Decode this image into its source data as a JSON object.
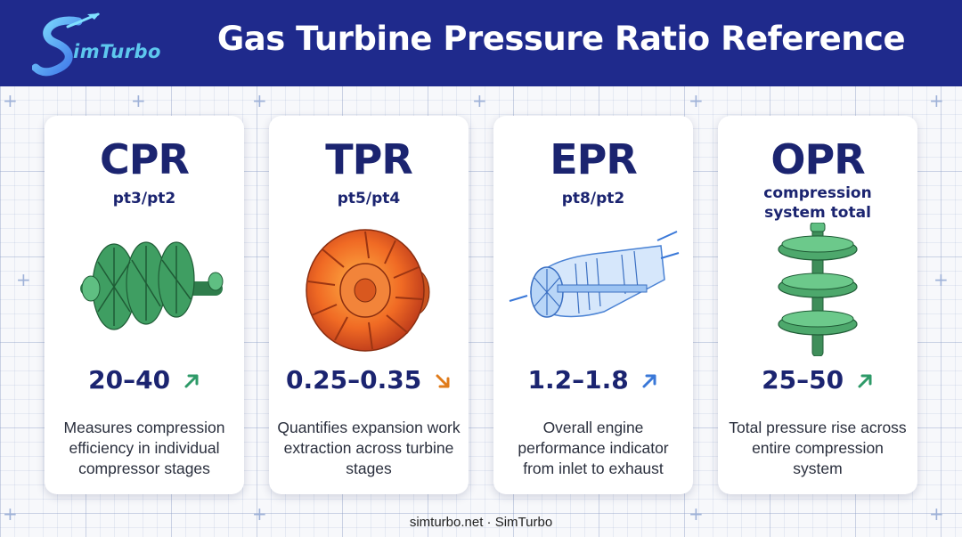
{
  "header": {
    "logo_text": "imTurbo",
    "title": "Gas Turbine Pressure Ratio Reference"
  },
  "cards": [
    {
      "abbr": "CPR",
      "formula": "pt3/pt2",
      "value": "20–40",
      "trend": "up",
      "trend_color": "#2e9a68",
      "description": "Measures compression efficiency in individual compressor stages",
      "icon": "compressor-rotor-icon"
    },
    {
      "abbr": "TPR",
      "formula": "pt5/pt4",
      "value": "0.25–0.35",
      "trend": "down",
      "trend_color": "#e07b1a",
      "description": "Quantifies expansion work extraction across turbine stages",
      "icon": "turbine-disk-icon"
    },
    {
      "abbr": "EPR",
      "formula": "pt8/pt2",
      "value": "1.2–1.8",
      "trend": "up",
      "trend_color": "#3a78d8",
      "description": "Overall engine performance indicator from inlet to exhaust",
      "icon": "jet-engine-icon"
    },
    {
      "abbr": "OPR",
      "formula": "compression system total",
      "value": "25–50",
      "trend": "up",
      "trend_color": "#2e9a68",
      "description": "Total pressure rise across entire compression system",
      "icon": "multistage-compressor-icon"
    }
  ],
  "footer": {
    "text": "simturbo.net · SimTurbo"
  },
  "colors": {
    "header_bg": "#1f2a8c",
    "heading": "#1b2470",
    "compressor_green": "#3f9e62",
    "turbine_orange": "#e8642a",
    "engine_blue": "#6ea6e6"
  }
}
